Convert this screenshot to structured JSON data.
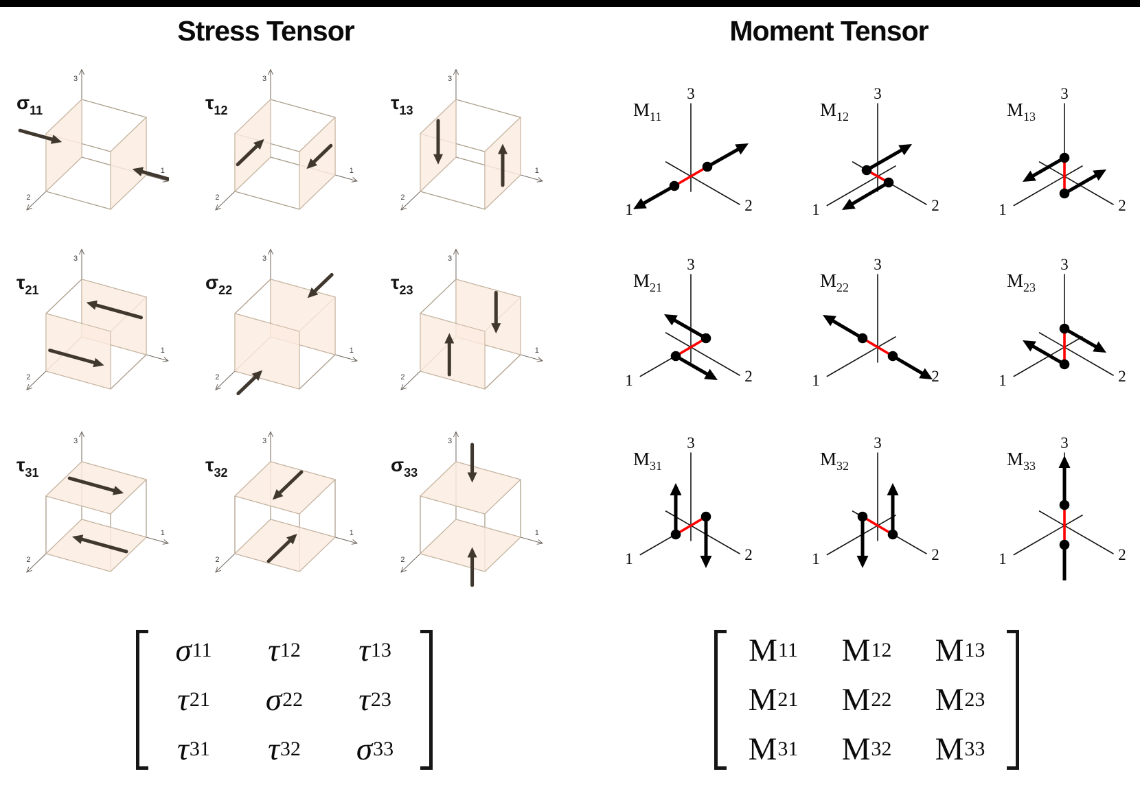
{
  "headers": {
    "stress": "Stress Tensor",
    "moment": "Moment Tensor"
  },
  "axis_labels": {
    "a1": "1",
    "a2": "2",
    "a3": "3"
  },
  "colors": {
    "face_fill": "#fbecdf",
    "face_stroke": "#c7b5a1",
    "edge": "#ad9f8d",
    "axis_stress": "#6f675f",
    "axis_digit": "#3c3c3c",
    "stress_arrow": "#40382e",
    "moment_axis": "#141414",
    "moment_arrow": "#000000",
    "moment_dot": "#000000",
    "moment_red": "#ff0000",
    "title": "#0a0a0a",
    "topbar": "#000000"
  },
  "stress_panels": [
    {
      "key": "sigma-11",
      "sym": "σ",
      "sub": "11",
      "axis": 1,
      "arrows": [
        {
          "s": [
            -0.68,
            0.5,
            0.55
          ],
          "e": [
            -0.03,
            0.5,
            0.55
          ]
        },
        {
          "s": [
            1.72,
            0.5,
            0.42
          ],
          "e": [
            1.06,
            0.5,
            0.42
          ]
        }
      ]
    },
    {
      "key": "tau-12",
      "sym": "τ",
      "sub": "12",
      "axis": 1,
      "arrows": [
        {
          "s": [
            0,
            0.92,
            0.42
          ],
          "e": [
            0,
            0.18,
            0.42
          ]
        },
        {
          "s": [
            1,
            0.12,
            0.58
          ],
          "e": [
            1,
            0.8,
            0.58
          ]
        }
      ]
    },
    {
      "key": "tau-13",
      "sym": "τ",
      "sub": "13",
      "axis": 1,
      "arrows": [
        {
          "s": [
            0,
            0.5,
            0.93
          ],
          "e": [
            0,
            0.5,
            0.17
          ]
        },
        {
          "s": [
            1,
            0.5,
            0.12
          ],
          "e": [
            1,
            0.5,
            0.84
          ]
        }
      ]
    },
    {
      "key": "tau-21",
      "sym": "τ",
      "sub": "21",
      "axis": 2,
      "arrows": [
        {
          "s": [
            0.92,
            0,
            0.62
          ],
          "e": [
            0.07,
            0,
            0.62
          ]
        },
        {
          "s": [
            0.06,
            1,
            0.38
          ],
          "e": [
            0.9,
            1,
            0.38
          ]
        }
      ]
    },
    {
      "key": "sigma-22",
      "sym": "σ",
      "sub": "22",
      "axis": 2,
      "arrows": [
        {
          "s": [
            0.55,
            -0.72,
            0.82
          ],
          "e": [
            0.55,
            -0.04,
            0.82
          ]
        },
        {
          "s": [
            0.45,
            1.72,
            0.18
          ],
          "e": [
            0.45,
            1.04,
            0.18
          ]
        }
      ]
    },
    {
      "key": "tau-23",
      "sym": "τ",
      "sub": "23",
      "axis": 2,
      "arrows": [
        {
          "s": [
            0.45,
            1,
            0.08
          ],
          "e": [
            0.45,
            1,
            0.8
          ]
        },
        {
          "s": [
            0.62,
            0,
            0.96
          ],
          "e": [
            0.62,
            0,
            0.25
          ]
        }
      ]
    },
    {
      "key": "tau-31",
      "sym": "τ",
      "sub": "31",
      "axis": 3,
      "arrows": [
        {
          "s": [
            0.06,
            0.45,
            1
          ],
          "e": [
            0.9,
            0.45,
            1
          ]
        },
        {
          "s": [
            0.94,
            0.45,
            0
          ],
          "e": [
            0.1,
            0.45,
            0
          ]
        }
      ]
    },
    {
      "key": "tau-32",
      "sym": "τ",
      "sub": "32",
      "axis": 3,
      "arrows": [
        {
          "s": [
            0.5,
            0.04,
            1
          ],
          "e": [
            0.5,
            0.85,
            1
          ]
        },
        {
          "s": [
            0.5,
            0.96,
            0
          ],
          "e": [
            0.5,
            0.16,
            0
          ]
        }
      ]
    },
    {
      "key": "sigma-33",
      "sym": "σ",
      "sub": "33",
      "axis": 3,
      "arrows": [
        {
          "s": [
            0.5,
            0.45,
            1.72
          ],
          "e": [
            0.5,
            0.45,
            1.06
          ]
        },
        {
          "s": [
            0.5,
            0.45,
            -0.72
          ],
          "e": [
            0.5,
            0.45,
            -0.06
          ]
        }
      ]
    }
  ],
  "moment_panels": [
    {
      "key": "m-11",
      "sym": "M",
      "sub": "11",
      "dots": [
        [
          -24,
          14
        ],
        [
          24,
          -14
        ]
      ],
      "arrows": [
        {
          "s": [
            -24,
            14
          ],
          "e": [
            -84,
            48
          ]
        },
        {
          "s": [
            24,
            -14
          ],
          "e": [
            84,
            -48
          ]
        }
      ]
    },
    {
      "key": "m-12",
      "sym": "M",
      "sub": "12",
      "dots": [
        [
          16,
          9
        ],
        [
          -16,
          -9
        ]
      ],
      "arrows": [
        {
          "s": [
            16,
            9
          ],
          "e": [
            -52,
            49
          ]
        },
        {
          "s": [
            -16,
            -9
          ],
          "e": [
            50,
            -47
          ]
        }
      ]
    },
    {
      "key": "m-13",
      "sym": "M",
      "sub": "13",
      "dots": [
        [
          0,
          -27
        ],
        [
          0,
          25
        ]
      ],
      "arrows": [
        {
          "s": [
            0,
            -27
          ],
          "e": [
            -61,
            8
          ]
        },
        {
          "s": [
            0,
            25
          ],
          "e": [
            61,
            -10
          ]
        }
      ]
    },
    {
      "key": "m-21",
      "sym": "M",
      "sub": "21",
      "dots": [
        [
          -22,
          13
        ],
        [
          22,
          -13
        ]
      ],
      "arrows": [
        {
          "s": [
            -22,
            13
          ],
          "e": [
            39,
            48
          ]
        },
        {
          "s": [
            22,
            -13
          ],
          "e": [
            -39,
            -48
          ]
        }
      ]
    },
    {
      "key": "m-22",
      "sym": "M",
      "sub": "22",
      "dots": [
        [
          22,
          13
        ],
        [
          -22,
          -13
        ]
      ],
      "arrows": [
        {
          "s": [
            22,
            13
          ],
          "e": [
            80,
            47
          ]
        },
        {
          "s": [
            -22,
            -13
          ],
          "e": [
            -80,
            -47
          ]
        }
      ]
    },
    {
      "key": "m-23",
      "sym": "M",
      "sub": "23",
      "dots": [
        [
          0,
          -27
        ],
        [
          0,
          25
        ]
      ],
      "arrows": [
        {
          "s": [
            0,
            -27
          ],
          "e": [
            61,
            8
          ]
        },
        {
          "s": [
            0,
            25
          ],
          "e": [
            -61,
            -10
          ]
        }
      ]
    },
    {
      "key": "m-31",
      "sym": "M",
      "sub": "31",
      "dots": [
        [
          -22,
          13
        ],
        [
          22,
          -13
        ]
      ],
      "arrows": [
        {
          "s": [
            -22,
            13
          ],
          "e": [
            -22,
            -62
          ]
        },
        {
          "s": [
            22,
            -13
          ],
          "e": [
            22,
            62
          ]
        }
      ]
    },
    {
      "key": "m-32",
      "sym": "M",
      "sub": "32",
      "dots": [
        [
          -22,
          -13
        ],
        [
          22,
          13
        ]
      ],
      "arrows": [
        {
          "s": [
            -22,
            -13
          ],
          "e": [
            -22,
            62
          ]
        },
        {
          "s": [
            22,
            13
          ],
          "e": [
            22,
            -62
          ]
        }
      ]
    },
    {
      "key": "m-33",
      "sym": "M",
      "sub": "33",
      "dots": [
        [
          0,
          -30
        ],
        [
          0,
          28
        ]
      ],
      "arrows": [
        {
          "s": [
            0,
            -30
          ],
          "e": [
            0,
            -102
          ]
        },
        {
          "s": [
            0,
            28
          ],
          "e": [
            0,
            98
          ]
        }
      ]
    }
  ],
  "stress_matrix": {
    "rows": [
      [
        {
          "g": "σ",
          "s": "11"
        },
        {
          "g": "τ",
          "s": "12"
        },
        {
          "g": "τ",
          "s": "13"
        }
      ],
      [
        {
          "g": "τ",
          "s": "21"
        },
        {
          "g": "σ",
          "s": "22"
        },
        {
          "g": "τ",
          "s": "23"
        }
      ],
      [
        {
          "g": "τ",
          "s": "31"
        },
        {
          "g": "τ",
          "s": "32"
        },
        {
          "g": "σ",
          "s": "33"
        }
      ]
    ]
  },
  "moment_matrix": {
    "rows": [
      [
        {
          "g": "M",
          "s": "11"
        },
        {
          "g": "M",
          "s": "12"
        },
        {
          "g": "M",
          "s": "13"
        }
      ],
      [
        {
          "g": "M",
          "s": "21"
        },
        {
          "g": "M",
          "s": "22"
        },
        {
          "g": "M",
          "s": "23"
        }
      ],
      [
        {
          "g": "M",
          "s": "31"
        },
        {
          "g": "M",
          "s": "32"
        },
        {
          "g": "M",
          "s": "33"
        }
      ]
    ]
  }
}
